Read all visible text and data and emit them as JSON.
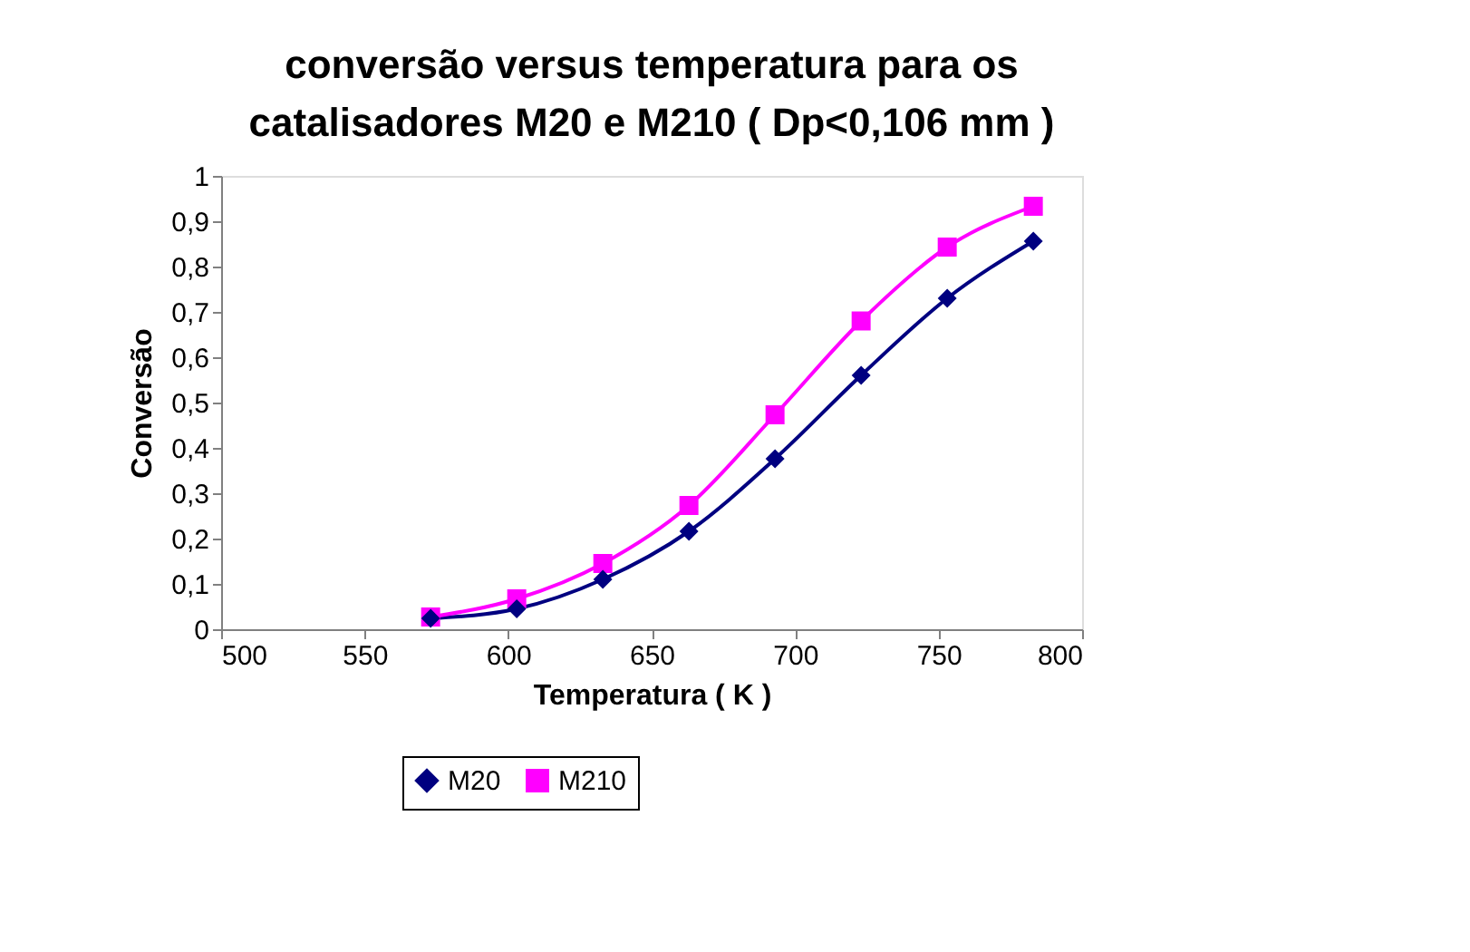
{
  "chart_data": {
    "type": "line",
    "title": "conversão versus temperatura para os catalisadores M20 e M210 ( Dp<0,106 mm )",
    "xlabel": "Temperatura ( K )",
    "ylabel": "Conversão",
    "x": [
      573,
      603,
      633,
      663,
      693,
      723,
      753,
      783
    ],
    "series": [
      {
        "name": "M20",
        "color": "#000080",
        "marker": "diamond",
        "values": [
          0.024,
          0.045,
          0.11,
          0.216,
          0.376,
          0.56,
          0.73,
          0.856
        ]
      },
      {
        "name": "M210",
        "color": "#ff00ff",
        "marker": "square",
        "values": [
          0.027,
          0.067,
          0.145,
          0.273,
          0.473,
          0.68,
          0.843,
          0.933
        ]
      }
    ],
    "xlim": [
      500,
      800
    ],
    "xticks": [
      500,
      550,
      600,
      650,
      700,
      750,
      800
    ],
    "ylim": [
      0,
      1
    ],
    "yticks": [
      0,
      {
        "value": 0.1,
        "label": "0,1"
      },
      {
        "value": 0.2,
        "label": "0,2"
      },
      {
        "value": 0.3,
        "label": "0,3"
      },
      {
        "value": 0.4,
        "label": "0,4"
      },
      {
        "value": 0.5,
        "label": "0,5"
      },
      {
        "value": 0.6,
        "label": "0,6"
      },
      {
        "value": 0.7,
        "label": "0,7"
      },
      {
        "value": 0.8,
        "label": "0,8"
      },
      {
        "value": 0.9,
        "label": "0,9"
      },
      1
    ],
    "grid": false,
    "legend": "bottom",
    "line_style": "solid"
  }
}
